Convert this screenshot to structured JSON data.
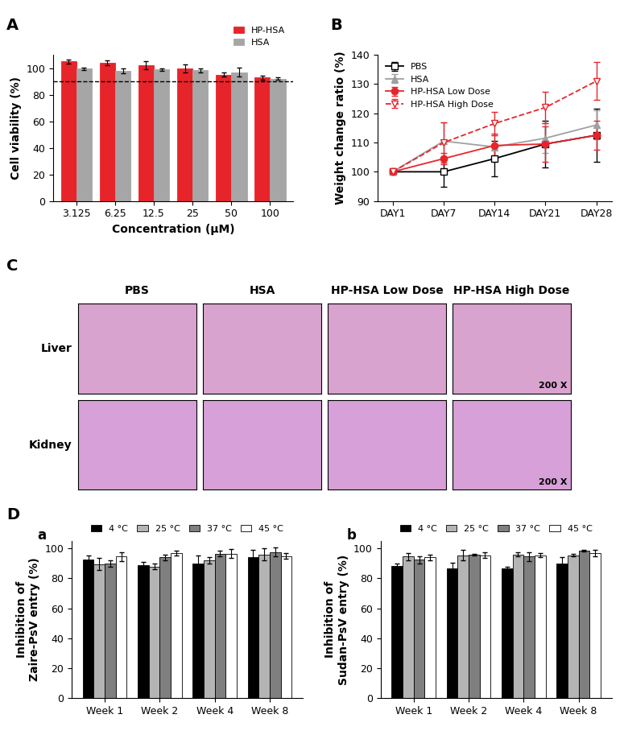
{
  "chart_data": [
    {
      "label": "A",
      "type": "bar",
      "categories": [
        "3.125",
        "6.25",
        "12.5",
        "25",
        "50",
        "100"
      ],
      "series": [
        {
          "name": "HP-HSA",
          "color": "#e8242b",
          "values": [
            105,
            104,
            102,
            100,
            95,
            93
          ],
          "errors": [
            1.5,
            2,
            3,
            3,
            1.5,
            1.5
          ]
        },
        {
          "name": "HSA",
          "color": "#a6a6a6",
          "values": [
            99.5,
            98,
            99,
            98.5,
            97,
            92
          ],
          "errors": [
            1,
            2,
            1,
            1.5,
            3.5,
            1
          ]
        }
      ],
      "xlabel": "Concentration (μM)",
      "ylabel": "Cell viability (%)",
      "ylim": [
        0,
        110
      ],
      "yticks": [
        0,
        20,
        40,
        60,
        80,
        100
      ],
      "reference_line": 90,
      "legend": "upper right"
    },
    {
      "label": "B",
      "type": "line",
      "categories": [
        "DAY1",
        "DAY7",
        "DAY14",
        "DAY21",
        "DAY28"
      ],
      "series": [
        {
          "name": "PBS",
          "color": "#000000",
          "marker": "open_square",
          "line_style": "solid",
          "values": [
            100,
            100,
            104.5,
            109.5,
            112.5
          ],
          "errors": [
            0,
            5,
            6,
            8,
            9
          ]
        },
        {
          "name": "HSA",
          "color": "#a0a0a0",
          "marker": "triangle",
          "line_style": "solid",
          "values": [
            100,
            110.5,
            108.5,
            111.5,
            116
          ],
          "errors": [
            0,
            6.5,
            4,
            5,
            5
          ]
        },
        {
          "name": "HP-HSA Low Dose",
          "color": "#e8242b",
          "marker": "circle",
          "line_style": "solid",
          "values": [
            100,
            104.5,
            109,
            109.5,
            112.5
          ],
          "errors": [
            0,
            2,
            4,
            6,
            5
          ]
        },
        {
          "name": "HP-HSA High Dose",
          "color": "#e8242b",
          "marker": "open_triangle_down",
          "line_style": "dashed",
          "values": [
            100,
            110,
            116.5,
            122,
            131
          ],
          "errors": [
            0,
            7,
            4,
            5.5,
            6.5
          ]
        }
      ],
      "ylabel": "Weight change ratio (%)",
      "ylim": [
        90,
        140
      ],
      "yticks": [
        90,
        100,
        110,
        120,
        130,
        140
      ],
      "legend": "upper left"
    },
    {
      "label": "C",
      "type": "image_grid",
      "columns": [
        "PBS",
        "HSA",
        "HP-HSA Low Dose",
        "HP-HSA High Dose"
      ],
      "rows": [
        "Liver",
        "Kidney"
      ],
      "annotation": "200 X"
    },
    {
      "group_label": "D",
      "label": "a",
      "type": "bar",
      "categories": [
        "Week 1",
        "Week 2",
        "Week 4",
        "Week 8"
      ],
      "series": [
        {
          "name": "4 °C",
          "color": "#000000",
          "values": [
            92.5,
            89,
            90,
            94
          ],
          "errors": [
            3,
            2,
            5.5,
            5
          ]
        },
        {
          "name": "25 °C",
          "color": "#b4b4b4",
          "values": [
            89.5,
            88,
            92,
            96
          ],
          "errors": [
            4,
            2,
            2,
            4
          ]
        },
        {
          "name": "37 °C",
          "color": "#7f7f7f",
          "values": [
            90,
            94,
            96.5,
            97.5
          ],
          "errors": [
            2,
            2,
            2,
            3
          ]
        },
        {
          "name": "45 °C",
          "color": "#ffffff",
          "values": [
            94.5,
            97,
            96.5,
            95
          ],
          "errors": [
            3,
            1.5,
            3,
            2
          ]
        }
      ],
      "ylabel": "Inhibition of\nZaire-PsV entry (%)",
      "ylim": [
        0,
        105
      ],
      "yticks": [
        0,
        20,
        40,
        60,
        80,
        100
      ],
      "legend": "upper center"
    },
    {
      "label": "b",
      "type": "bar",
      "categories": [
        "Week 1",
        "Week 2",
        "Week 4",
        "Week 8"
      ],
      "series": [
        {
          "name": "4 °C",
          "color": "#000000",
          "values": [
            88.5,
            86.5,
            86.5,
            90
          ],
          "errors": [
            1.5,
            4,
            1.5,
            4
          ]
        },
        {
          "name": "25 °C",
          "color": "#b4b4b4",
          "values": [
            94.5,
            95.5,
            96,
            95.5
          ],
          "errors": [
            2.5,
            3.5,
            1.5,
            1
          ]
        },
        {
          "name": "37 °C",
          "color": "#7f7f7f",
          "values": [
            92.5,
            96,
            94.5,
            98.5
          ],
          "errors": [
            2.5,
            0.5,
            3,
            0.5
          ]
        },
        {
          "name": "45 °C",
          "color": "#ffffff",
          "values": [
            94,
            95.5,
            95.5,
            97
          ],
          "errors": [
            2,
            2,
            1.5,
            2
          ]
        }
      ],
      "ylabel": "Inhibition of\nSudan-PsV entry (%)",
      "ylim": [
        0,
        105
      ],
      "yticks": [
        0,
        20,
        40,
        60,
        80,
        100
      ],
      "legend": "upper center"
    }
  ]
}
